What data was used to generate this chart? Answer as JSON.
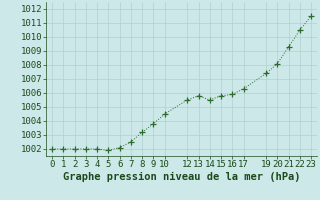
{
  "x": [
    0,
    1,
    2,
    3,
    4,
    5,
    6,
    7,
    8,
    9,
    10,
    12,
    13,
    14,
    15,
    16,
    17,
    19,
    20,
    21,
    22,
    23
  ],
  "y": [
    1002.0,
    1002.0,
    1002.0,
    1002.0,
    1002.0,
    1001.9,
    1002.1,
    1002.5,
    1003.2,
    1003.8,
    1004.5,
    1005.5,
    1005.8,
    1005.5,
    1005.8,
    1005.9,
    1006.3,
    1007.4,
    1008.1,
    1009.3,
    1010.5,
    1011.5
  ],
  "line_color": "#2d6a2d",
  "marker": "+",
  "marker_size": 4,
  "background_color": "#cce8e8",
  "grid_color": "#b0d0d0",
  "xlabel": "Graphe pression niveau de la mer (hPa)",
  "xlabel_color": "#1a4a1a",
  "xlabel_fontsize": 7.5,
  "tick_color": "#1a4a1a",
  "tick_fontsize": 6.5,
  "ylim": [
    1001.5,
    1012.5
  ],
  "xlim": [
    -0.5,
    23.5
  ],
  "yticks": [
    1002,
    1003,
    1004,
    1005,
    1006,
    1007,
    1008,
    1009,
    1010,
    1011,
    1012
  ],
  "xtick_labels": [
    "0",
    "1",
    "2",
    "3",
    "4",
    "5",
    "6",
    "7",
    "8",
    "9",
    "10",
    "12",
    "13",
    "14",
    "15",
    "16",
    "17",
    "19",
    "20",
    "21",
    "22",
    "23"
  ],
  "xtick_positions": [
    0,
    1,
    2,
    3,
    4,
    5,
    6,
    7,
    8,
    9,
    10,
    12,
    13,
    14,
    15,
    16,
    17,
    19,
    20,
    21,
    22,
    23
  ]
}
